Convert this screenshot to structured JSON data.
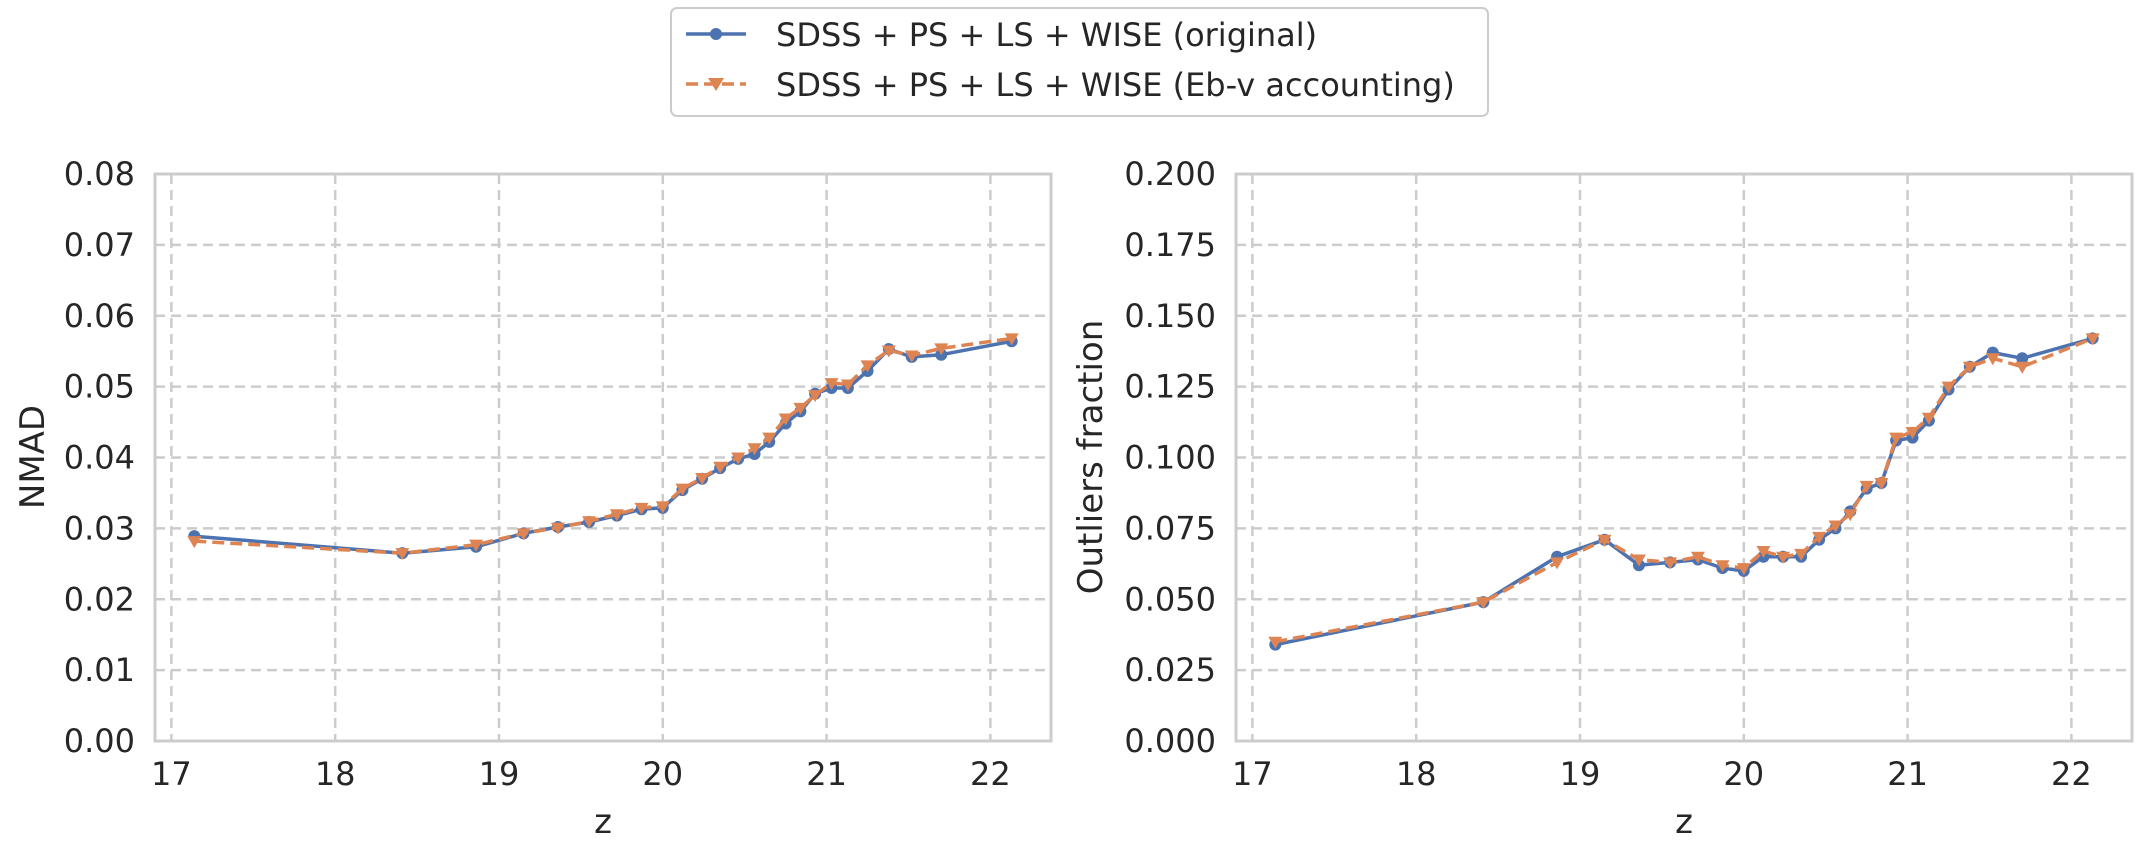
{
  "legend": {
    "entries": [
      {
        "label": "SDSS + PS + LS + WISE (original)",
        "color": "#4c72b0",
        "line": "solid",
        "marker": "circle"
      },
      {
        "label": "SDSS + PS + LS + WISE (Eb-v accounting)",
        "color": "#dd8452",
        "line": "dashed",
        "marker": "triangle-down"
      }
    ],
    "placement": "top-center"
  },
  "chart_data": [
    {
      "type": "line",
      "xlabel": "z",
      "ylabel": "NMAD",
      "xlim": [
        16.9,
        22.37
      ],
      "ylim": [
        0,
        0.08
      ],
      "xticks": [
        17,
        18,
        19,
        20,
        21,
        22
      ],
      "xtick_labels": [
        "17",
        "18",
        "19",
        "20",
        "21",
        "22"
      ],
      "yticks": [
        0,
        0.01,
        0.02,
        0.03,
        0.04,
        0.05,
        0.06,
        0.07,
        0.08
      ],
      "ytick_labels": [
        "0.00",
        "0.01",
        "0.02",
        "0.03",
        "0.04",
        "0.05",
        "0.06",
        "0.07",
        "0.08"
      ],
      "grid": true,
      "series": [
        {
          "name": "SDSS + PS + LS + WISE (original)",
          "color": "#4c72b0",
          "x": [
            17.14,
            18.41,
            18.86,
            19.15,
            19.36,
            19.55,
            19.72,
            19.87,
            20.0,
            20.12,
            20.24,
            20.35,
            20.46,
            20.56,
            20.65,
            20.75,
            20.84,
            20.93,
            21.03,
            21.13,
            21.25,
            21.38,
            21.52,
            21.7,
            22.13
          ],
          "y": [
            0.0289,
            0.0265,
            0.0274,
            0.0293,
            0.0302,
            0.0309,
            0.0318,
            0.0327,
            0.0329,
            0.0354,
            0.037,
            0.0385,
            0.0398,
            0.0405,
            0.0422,
            0.0448,
            0.0465,
            0.049,
            0.0498,
            0.0498,
            0.0522,
            0.0553,
            0.0542,
            0.0545,
            0.0564
          ]
        },
        {
          "name": "SDSS + PS + LS + WISE (Eb-v accounting)",
          "color": "#dd8452",
          "x": [
            17.14,
            18.41,
            18.86,
            19.15,
            19.36,
            19.55,
            19.72,
            19.87,
            20.0,
            20.12,
            20.24,
            20.35,
            20.46,
            20.56,
            20.65,
            20.75,
            20.84,
            20.93,
            21.03,
            21.13,
            21.25,
            21.38,
            21.52,
            21.7,
            22.13
          ],
          "y": [
            0.0282,
            0.0265,
            0.0277,
            0.0293,
            0.0301,
            0.031,
            0.032,
            0.0329,
            0.0331,
            0.0356,
            0.0371,
            0.0387,
            0.04,
            0.0413,
            0.0428,
            0.0455,
            0.047,
            0.0488,
            0.0505,
            0.0503,
            0.053,
            0.0551,
            0.0544,
            0.0554,
            0.0568
          ]
        }
      ]
    },
    {
      "type": "line",
      "xlabel": "z",
      "ylabel": "Outliers fraction",
      "xlim": [
        16.9,
        22.37
      ],
      "ylim": [
        0,
        0.2
      ],
      "xticks": [
        17,
        18,
        19,
        20,
        21,
        22
      ],
      "xtick_labels": [
        "17",
        "18",
        "19",
        "20",
        "21",
        "22"
      ],
      "yticks": [
        0,
        0.025,
        0.05,
        0.075,
        0.1,
        0.125,
        0.15,
        0.175,
        0.2
      ],
      "ytick_labels": [
        "0.000",
        "0.025",
        "0.050",
        "0.075",
        "0.100",
        "0.125",
        "0.150",
        "0.175",
        "0.200"
      ],
      "grid": true,
      "series": [
        {
          "name": "SDSS + PS + LS + WISE (original)",
          "color": "#4c72b0",
          "x": [
            17.14,
            18.41,
            18.86,
            19.15,
            19.36,
            19.55,
            19.72,
            19.87,
            20.0,
            20.12,
            20.24,
            20.35,
            20.46,
            20.56,
            20.65,
            20.75,
            20.84,
            20.93,
            21.03,
            21.13,
            21.25,
            21.38,
            21.52,
            21.7,
            22.13
          ],
          "y": [
            0.034,
            0.049,
            0.065,
            0.071,
            0.062,
            0.063,
            0.064,
            0.061,
            0.06,
            0.065,
            0.065,
            0.065,
            0.071,
            0.075,
            0.081,
            0.089,
            0.091,
            0.106,
            0.107,
            0.113,
            0.124,
            0.132,
            0.137,
            0.135,
            0.142
          ]
        },
        {
          "name": "SDSS + PS + LS + WISE (Eb-v accounting)",
          "color": "#dd8452",
          "x": [
            17.14,
            18.41,
            18.86,
            19.15,
            19.36,
            19.55,
            19.72,
            19.87,
            20.0,
            20.12,
            20.24,
            20.35,
            20.46,
            20.56,
            20.65,
            20.75,
            20.84,
            20.93,
            21.03,
            21.13,
            21.25,
            21.38,
            21.52,
            21.7,
            22.13
          ],
          "y": [
            0.035,
            0.049,
            0.063,
            0.071,
            0.064,
            0.063,
            0.065,
            0.062,
            0.061,
            0.067,
            0.065,
            0.066,
            0.072,
            0.076,
            0.08,
            0.09,
            0.091,
            0.107,
            0.109,
            0.114,
            0.125,
            0.132,
            0.135,
            0.132,
            0.142
          ]
        }
      ]
    }
  ]
}
